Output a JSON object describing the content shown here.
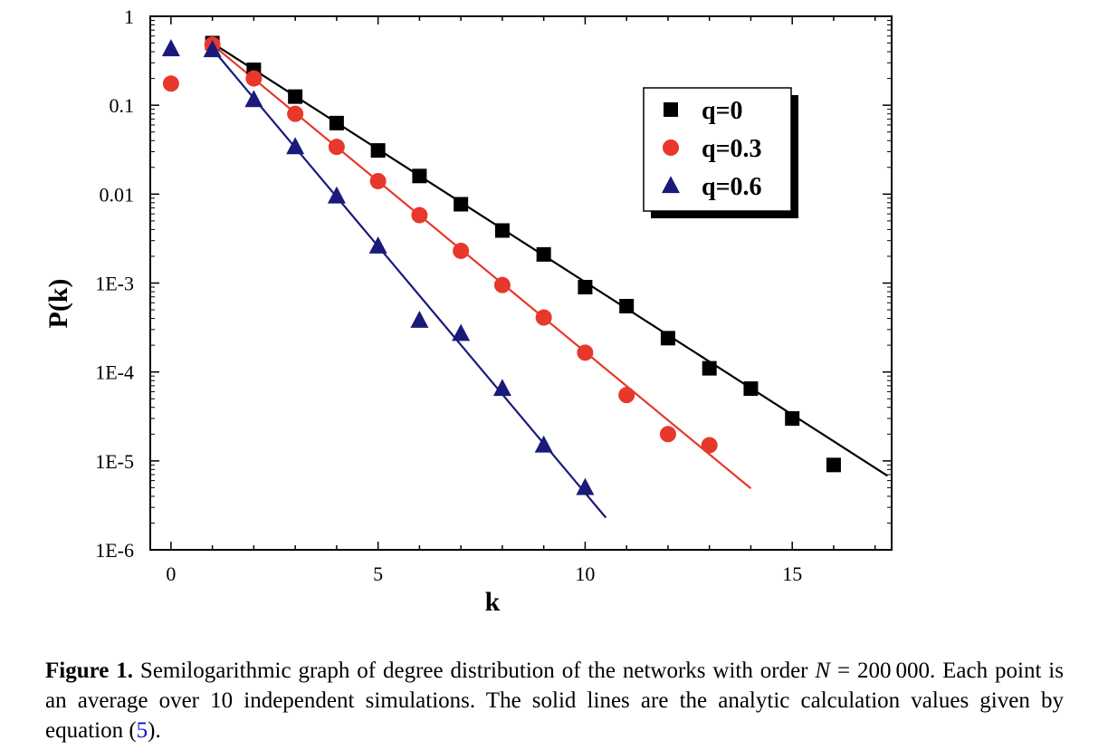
{
  "chart_data": {
    "type": "scatter",
    "xlabel": "k",
    "ylabel": "P(k)",
    "y_scale": "log",
    "xlim": [
      -0.5,
      17.4
    ],
    "ylim": [
      1e-06,
      1
    ],
    "x_ticks": [
      0,
      5,
      10,
      15
    ],
    "y_ticks": [
      1,
      0.1,
      0.01,
      0.001,
      0.0001,
      1e-05,
      1e-06
    ],
    "y_tick_labels": [
      "1",
      "0.1",
      "0.01",
      "1E-3",
      "1E-4",
      "1E-5",
      "1E-6"
    ],
    "legend_position": "top-right",
    "series": [
      {
        "name": "q=0",
        "marker": "square",
        "color": "#000000",
        "points": [
          [
            1,
            0.5
          ],
          [
            2,
            0.25
          ],
          [
            3,
            0.125
          ],
          [
            4,
            0.063
          ],
          [
            5,
            0.031
          ],
          [
            6,
            0.016
          ],
          [
            7,
            0.0077
          ],
          [
            8,
            0.0039
          ],
          [
            9,
            0.0021
          ],
          [
            10,
            0.0009
          ],
          [
            11,
            0.00055
          ],
          [
            12,
            0.00024
          ],
          [
            13,
            0.00011
          ],
          [
            14,
            6.5e-05
          ],
          [
            15,
            3e-05
          ],
          [
            16,
            9e-06
          ]
        ],
        "fit_line": [
          [
            1,
            0.5
          ],
          [
            17.3,
            6.8e-06
          ]
        ]
      },
      {
        "name": "q=0.3",
        "marker": "circle",
        "color": "#e8372b",
        "points": [
          [
            0,
            0.175
          ],
          [
            1,
            0.48
          ],
          [
            2,
            0.2
          ],
          [
            3,
            0.08
          ],
          [
            4,
            0.034
          ],
          [
            5,
            0.014
          ],
          [
            6,
            0.0058
          ],
          [
            7,
            0.0023
          ],
          [
            8,
            0.00095
          ],
          [
            9,
            0.00041
          ],
          [
            10,
            0.000165
          ],
          [
            11,
            5.5e-05
          ],
          [
            12,
            2e-05
          ],
          [
            13,
            1.5e-05
          ]
        ],
        "fit_line": [
          [
            1,
            0.48
          ],
          [
            14,
            4.9e-06
          ]
        ]
      },
      {
        "name": "q=0.6",
        "marker": "triangle",
        "color": "#1a1a7a",
        "points": [
          [
            0,
            0.43
          ],
          [
            1,
            0.42
          ],
          [
            2,
            0.115
          ],
          [
            3,
            0.034
          ],
          [
            4,
            0.0095
          ],
          [
            5,
            0.0026
          ],
          [
            6,
            0.00038
          ],
          [
            7,
            0.00027
          ],
          [
            8,
            6.5e-05
          ],
          [
            9,
            1.5e-05
          ],
          [
            10,
            5e-06
          ]
        ],
        "fit_line": [
          [
            1,
            0.43
          ],
          [
            10.5,
            2.3e-06
          ]
        ]
      }
    ]
  },
  "caption": {
    "label": "Figure 1.",
    "text_before": " Semilogarithmic graph of degree distribution of the networks with order ",
    "math_var": "N",
    "text_eq": " = 200 000. Each point is an average over 10 independent simulations.  The solid lines are the analytic calculation values given by equation (",
    "ref": "5",
    "text_after": ")."
  }
}
